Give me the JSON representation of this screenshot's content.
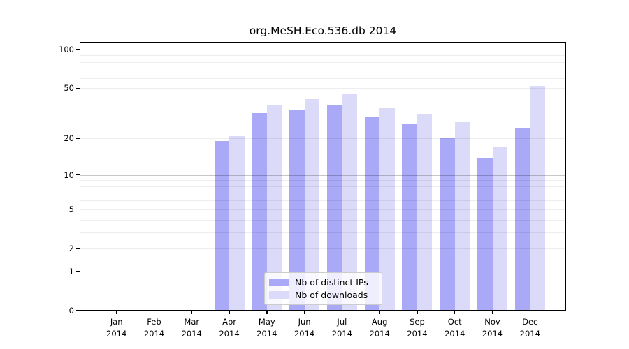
{
  "figure": {
    "title": "org.MeSH.Eco.536.db 2014"
  },
  "chart_data": {
    "type": "bar",
    "title": "org.MeSH.Eco.536.db 2014",
    "categories": [
      "Jan 2014",
      "Feb 2014",
      "Mar 2014",
      "Apr 2014",
      "May 2014",
      "Jun 2014",
      "Jul 2014",
      "Aug 2014",
      "Sep 2014",
      "Oct 2014",
      "Nov 2014",
      "Dec 2014"
    ],
    "x_tick_month": [
      "Jan",
      "Feb",
      "Mar",
      "Apr",
      "May",
      "Jun",
      "Jul",
      "Aug",
      "Sep",
      "Oct",
      "Nov",
      "Dec"
    ],
    "x_tick_year": "2014",
    "series": [
      {
        "name": "Nb of distinct IPs",
        "color": "#a9a9f7",
        "values": [
          0,
          0,
          0,
          19,
          32,
          34,
          37,
          30,
          26,
          20,
          14,
          24
        ]
      },
      {
        "name": "Nb of downloads",
        "color": "#dbdbf9",
        "values": [
          0,
          0,
          0,
          21,
          37,
          41,
          45,
          35,
          31,
          27,
          17,
          52
        ]
      }
    ],
    "yscale": "log1p",
    "ylim": [
      0,
      115
    ],
    "yticks": [
      0,
      1,
      2,
      5,
      10,
      20,
      50,
      100
    ],
    "ytick_labels": [
      "0",
      "1",
      "2",
      "5",
      "10",
      "20",
      "50",
      "100"
    ],
    "gridlines_major": [
      1,
      10,
      100
    ],
    "gridlines_minor": [
      2,
      3,
      4,
      5,
      6,
      7,
      8,
      9,
      20,
      30,
      40,
      50,
      60,
      70,
      80,
      90
    ],
    "grid": true,
    "xlabel": "",
    "ylabel": "",
    "legend": {
      "position": "lower center",
      "labels": [
        "Nb of distinct IPs",
        "Nb of downloads"
      ]
    }
  }
}
